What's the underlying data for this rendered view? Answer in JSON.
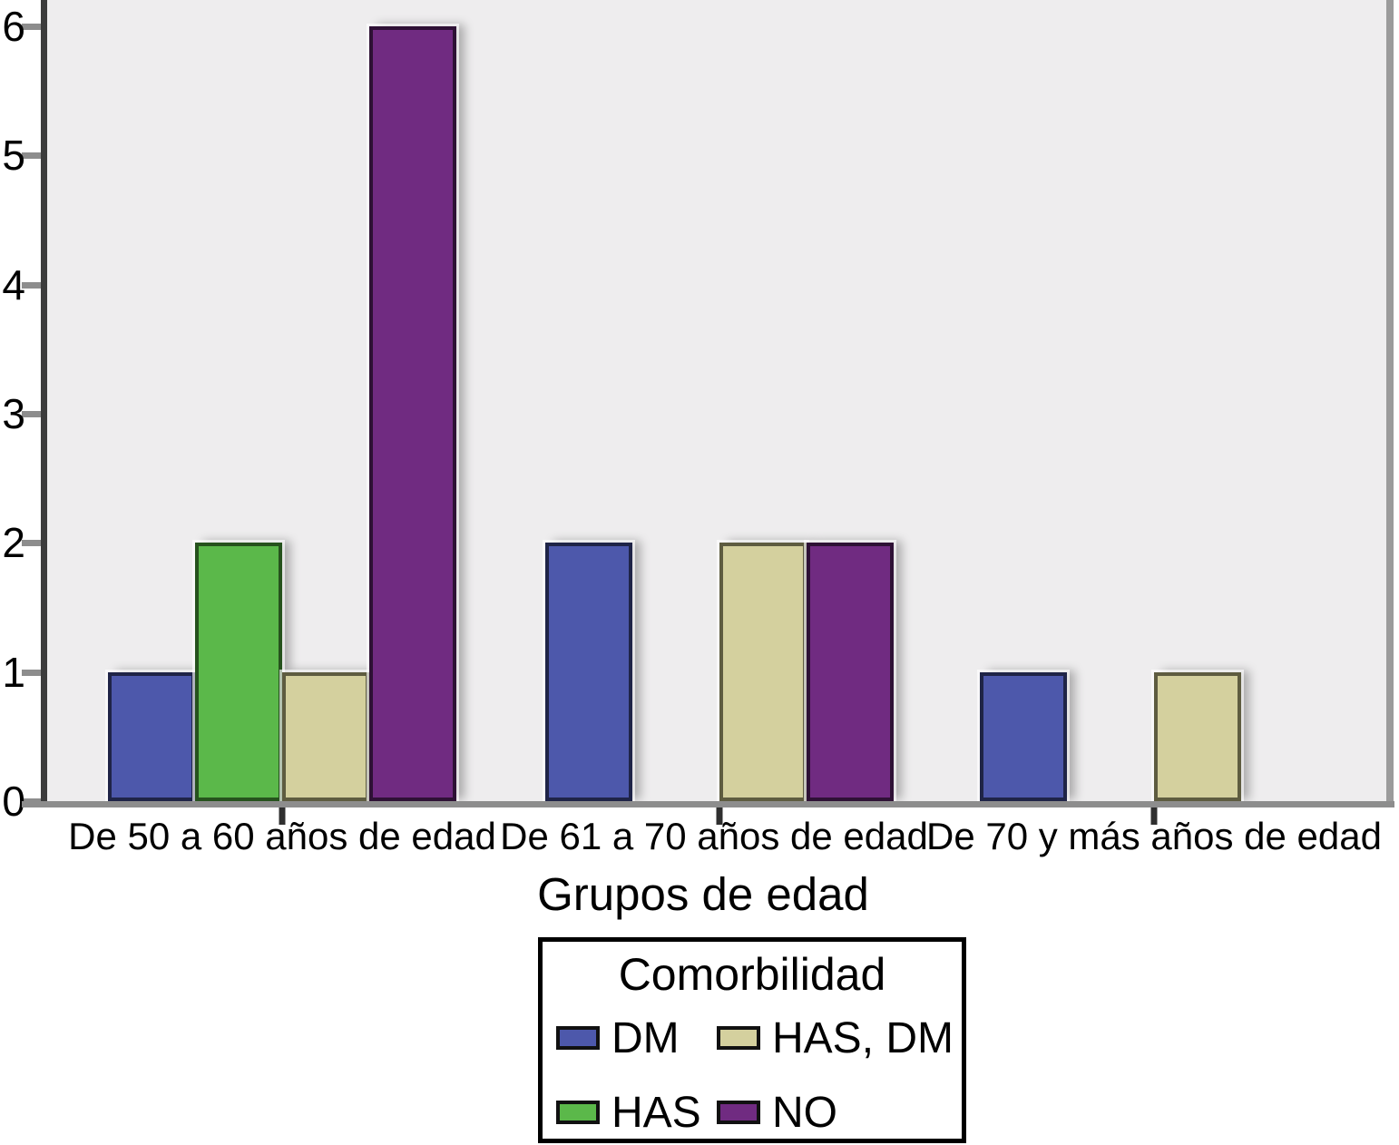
{
  "chart_data": {
    "type": "bar",
    "xlabel": "Grupos de edad",
    "ylim": [
      0,
      6.2
    ],
    "yticks": [
      0,
      1,
      2,
      3,
      4,
      5,
      6
    ],
    "grid": false,
    "legend_position": "bottom",
    "categories": [
      "De 50 a 60 años de edad",
      "De 61 a 70 años de edad",
      "De 70 y más años de edad"
    ],
    "series": [
      {
        "name": "DM",
        "color": "#4d58ab",
        "border_color": "#1f2447",
        "values": [
          1,
          2,
          1
        ]
      },
      {
        "name": "HAS",
        "color": "#5bb84a",
        "border_color": "#26521d",
        "values": [
          2,
          0,
          0
        ]
      },
      {
        "name": "HAS, DM",
        "color": "#d4d09e",
        "border_color": "#5e5c40",
        "values": [
          1,
          2,
          1
        ]
      },
      {
        "name": "NO",
        "color": "#702b81",
        "border_color": "#2e1135",
        "values": [
          6,
          2,
          0
        ]
      }
    ],
    "legend": {
      "title": "Comorbilidad",
      "items": [
        {
          "label": "DM",
          "color": "#4d58ab"
        },
        {
          "label": "HAS, DM",
          "color": "#d4d09e"
        },
        {
          "label": "HAS",
          "color": "#5bb84a"
        },
        {
          "label": "NO",
          "color": "#702b81"
        }
      ]
    }
  }
}
